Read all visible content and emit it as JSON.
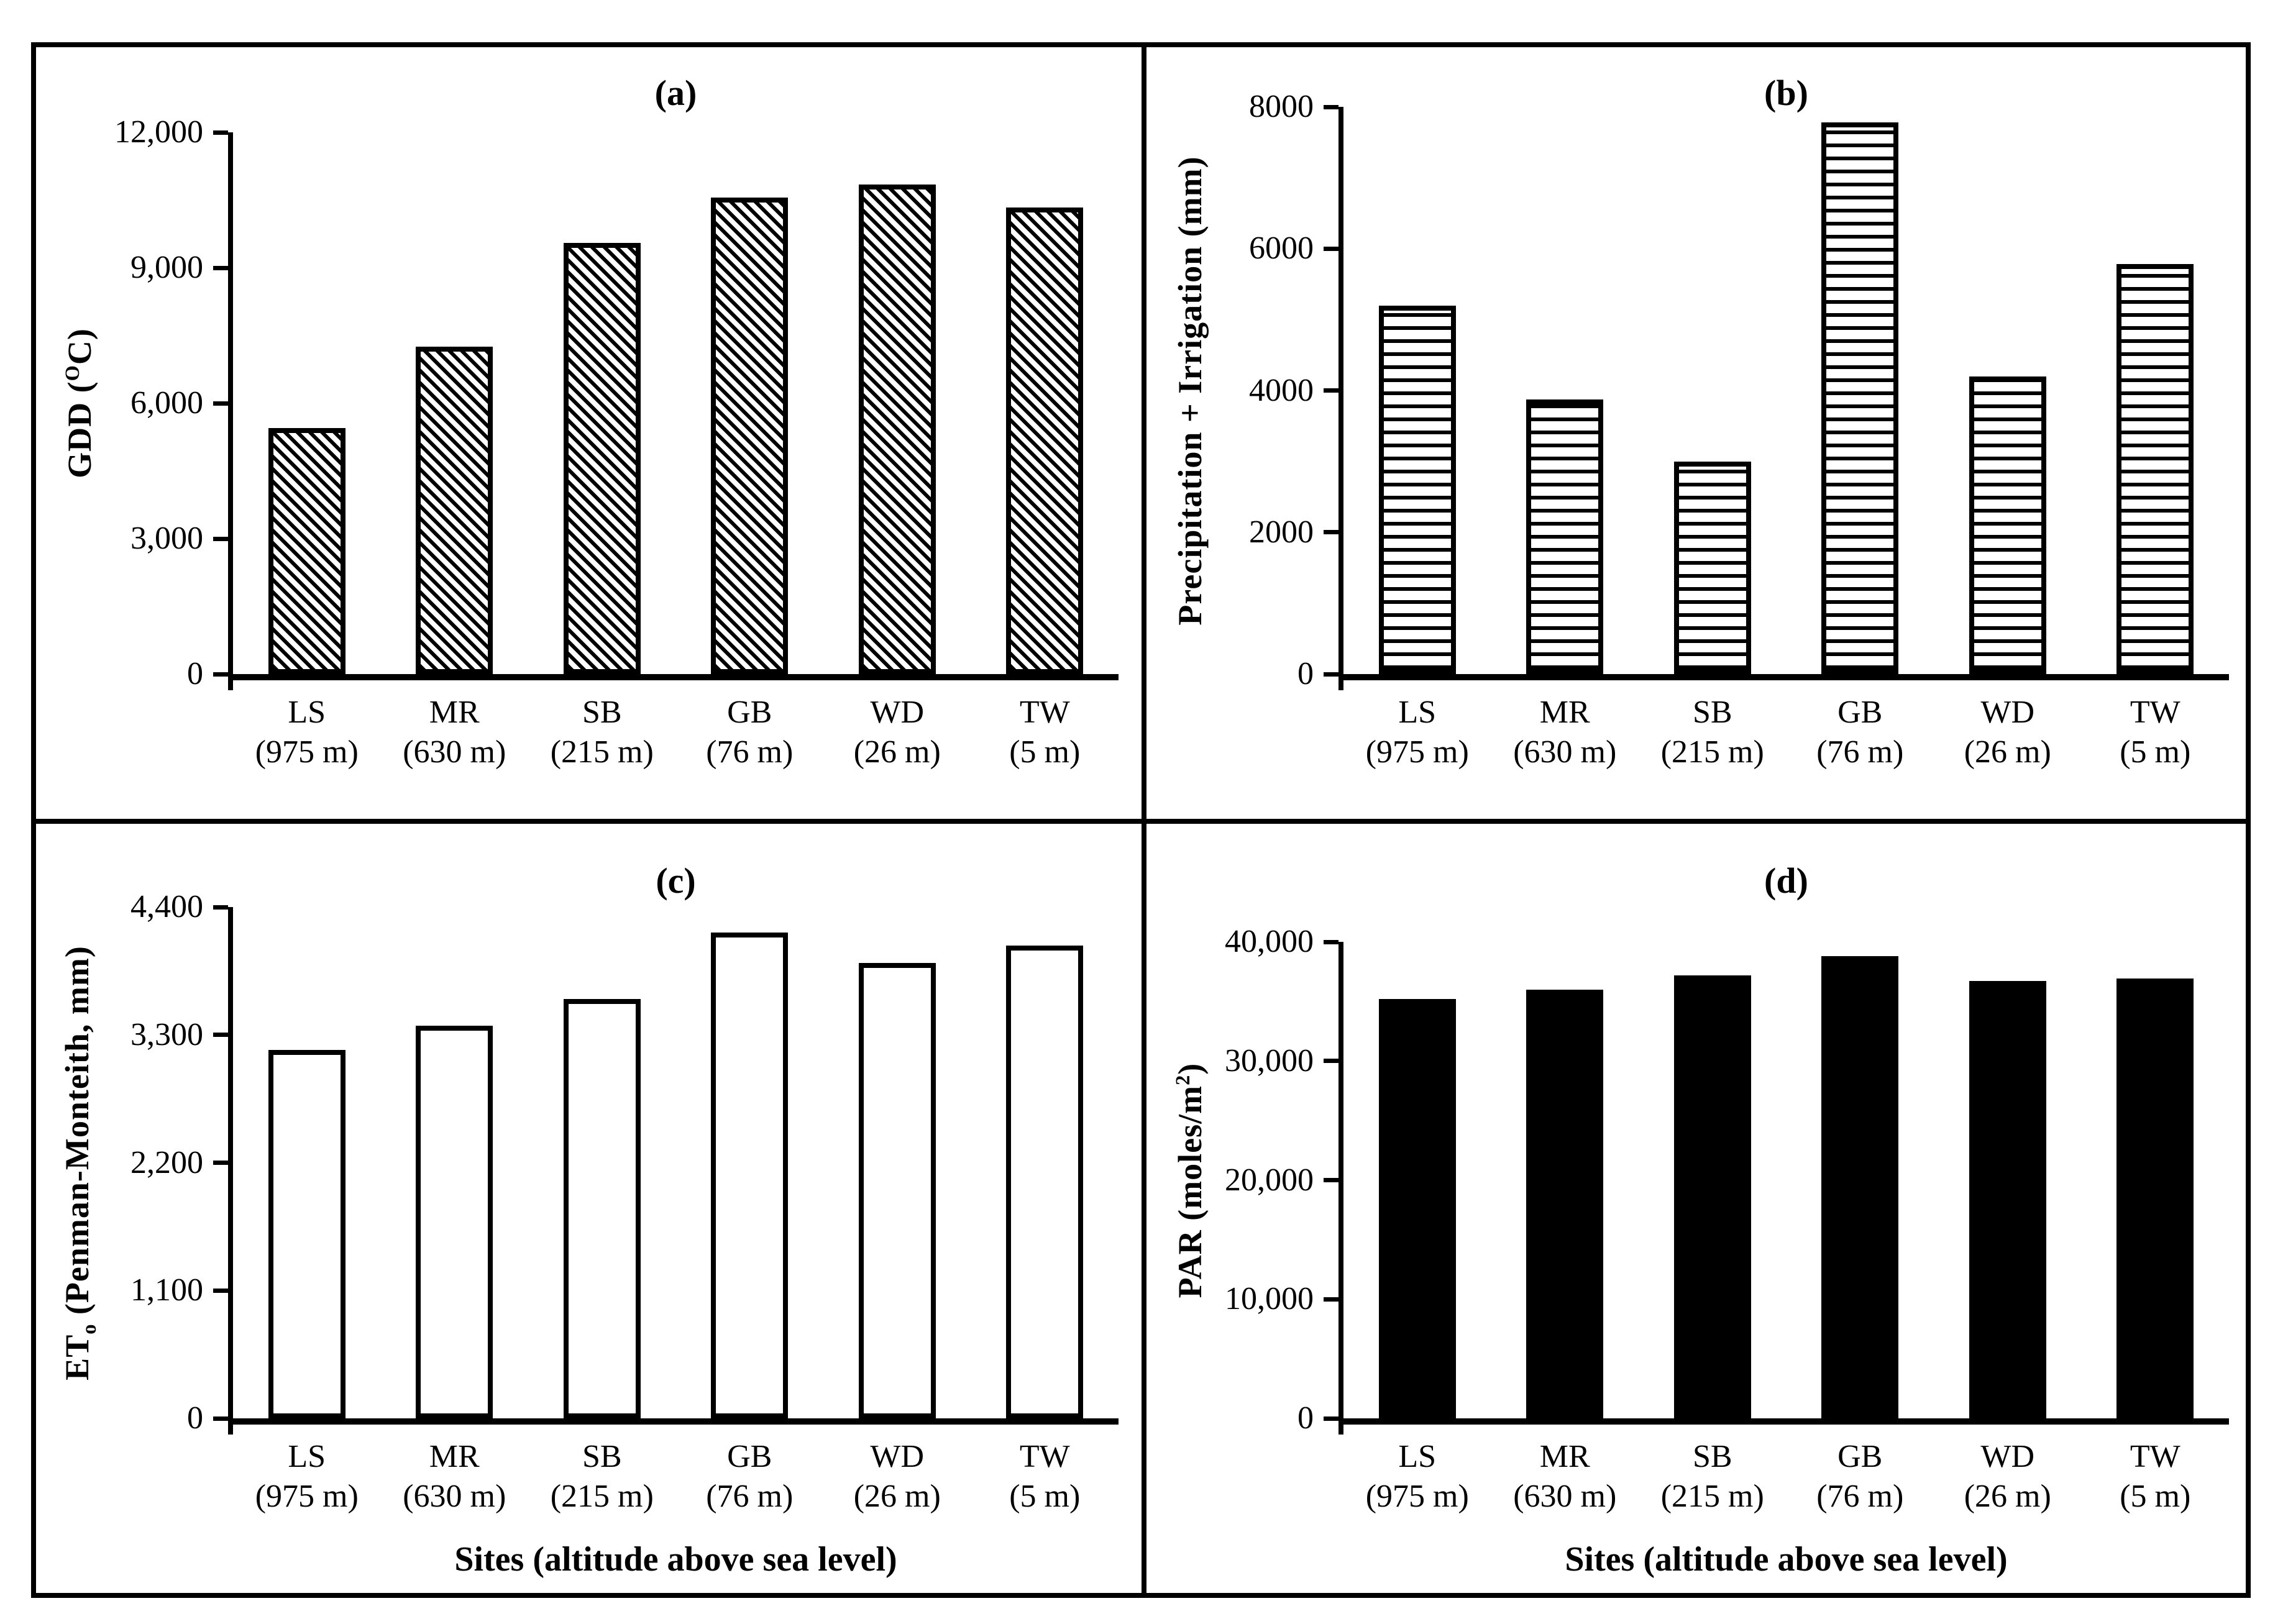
{
  "figure": {
    "x_axis_title": "Sites (altitude above sea level)",
    "panel_order": [
      "a",
      "b",
      "c",
      "d"
    ]
  },
  "chart_data": [
    {
      "type": "bar",
      "panel": "a",
      "title": "(a)",
      "ylabel": [
        {
          "text": "GDD ("
        },
        {
          "text": "O",
          "script": "sup"
        },
        {
          "text": "C)"
        }
      ],
      "xlabel": "",
      "ylim": [
        0,
        12000
      ],
      "grid": false,
      "legend": null,
      "bar_style": "diagonal-hatch",
      "yticks": [
        {
          "value": 12000,
          "label": "12,000"
        },
        {
          "value": 9000,
          "label": "9,000"
        },
        {
          "value": 6000,
          "label": "6,000"
        },
        {
          "value": 3000,
          "label": "3,000"
        },
        {
          "value": 0,
          "label": "0"
        }
      ],
      "categories": [
        [
          "LS",
          "(975 m)"
        ],
        [
          "MR",
          "(630 m)"
        ],
        [
          "SB",
          "(215 m)"
        ],
        [
          "GB",
          "(76 m)"
        ],
        [
          "WD",
          "(26 m)"
        ],
        [
          "TW",
          "(5 m)"
        ]
      ],
      "values": [
        5450,
        7250,
        9550,
        10550,
        10850,
        10330
      ]
    },
    {
      "type": "bar",
      "panel": "b",
      "title": "(b)",
      "ylabel": [
        {
          "text": "Precipitation + Irrigation (mm)"
        }
      ],
      "xlabel": "",
      "ylim": [
        0,
        8000
      ],
      "grid": false,
      "legend": null,
      "bar_style": "horizontal-stripes",
      "yticks": [
        {
          "value": 8000,
          "label": "8000"
        },
        {
          "value": 6000,
          "label": "6000"
        },
        {
          "value": 4000,
          "label": "4000"
        },
        {
          "value": 2000,
          "label": "2000"
        },
        {
          "value": 0,
          "label": "0"
        }
      ],
      "categories": [
        [
          "LS",
          "(975 m)"
        ],
        [
          "MR",
          "(630 m)"
        ],
        [
          "SB",
          "(215 m)"
        ],
        [
          "GB",
          "(76 m)"
        ],
        [
          "WD",
          "(26 m)"
        ],
        [
          "TW",
          "(5 m)"
        ]
      ],
      "values": [
        5200,
        3870,
        3000,
        7780,
        4200,
        5780
      ]
    },
    {
      "type": "bar",
      "panel": "c",
      "title": "(c)",
      "ylabel": [
        {
          "text": "ET"
        },
        {
          "text": "o",
          "script": "sub"
        },
        {
          "text": "  (Penman-Monteith, mm)"
        }
      ],
      "xlabel": "Sites (altitude above sea level)",
      "ylim": [
        0,
        4400
      ],
      "grid": false,
      "legend": null,
      "bar_style": "outline",
      "yticks": [
        {
          "value": 4400,
          "label": "4,400"
        },
        {
          "value": 3300,
          "label": "3,300"
        },
        {
          "value": 2200,
          "label": "2,200"
        },
        {
          "value": 1100,
          "label": "1,100"
        },
        {
          "value": 0,
          "label": "0"
        }
      ],
      "categories": [
        [
          "LS",
          "(975 m)"
        ],
        [
          "MR",
          "(630 m)"
        ],
        [
          "SB",
          "(215 m)"
        ],
        [
          "GB",
          "(76 m)"
        ],
        [
          "WD",
          "(26 m)"
        ],
        [
          "TW",
          "(5 m)"
        ]
      ],
      "values": [
        3170,
        3380,
        3610,
        4180,
        3920,
        4070
      ]
    },
    {
      "type": "bar",
      "panel": "d",
      "title": "(d)",
      "ylabel": [
        {
          "text": "PAR (moles/m"
        },
        {
          "text": "2",
          "script": "sup"
        },
        {
          "text": ")"
        }
      ],
      "xlabel": "Sites (altitude above sea level)",
      "ylim": [
        0,
        40000
      ],
      "grid": false,
      "legend": null,
      "bar_style": "solid",
      "yticks": [
        {
          "value": 40000,
          "label": "40,000"
        },
        {
          "value": 30000,
          "label": "30,000"
        },
        {
          "value": 20000,
          "label": "20,000"
        },
        {
          "value": 10000,
          "label": "10,000"
        },
        {
          "value": 0,
          "label": "0"
        }
      ],
      "categories": [
        [
          "LS",
          "(975 m)"
        ],
        [
          "MR",
          "(630 m)"
        ],
        [
          "SB",
          "(215 m)"
        ],
        [
          "GB",
          "(76 m)"
        ],
        [
          "WD",
          "(26 m)"
        ],
        [
          "TW",
          "(5 m)"
        ]
      ],
      "values": [
        35200,
        36000,
        37200,
        38800,
        36700,
        36900
      ]
    }
  ]
}
